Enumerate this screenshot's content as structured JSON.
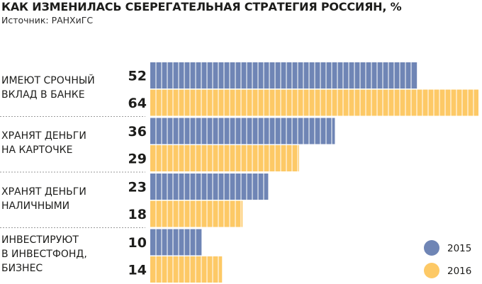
{
  "title": "КАК ИЗМЕНИЛАСЬ СБЕРЕГАТЕЛЬНАЯ СТРАТЕГИЯ РОССИЯН, %",
  "source": "Источник: РАНХиГС",
  "colors": {
    "2015": "#6f85b5",
    "2016": "#fdc966"
  },
  "chart_data": {
    "type": "bar",
    "orientation": "horizontal",
    "title": "КАК ИЗМЕНИЛАСЬ СБЕРЕГАТЕЛЬНАЯ СТРАТЕГИЯ РОССИЯН, %",
    "categories": [
      [
        "ИМЕЮТ СРОЧНЫЙ",
        "ВКЛАД В БАНКЕ"
      ],
      [
        "ХРАНЯТ ДЕНЬГИ",
        "НА КАРТОЧКЕ"
      ],
      [
        "ХРАНЯТ ДЕНЬГИ",
        "НАЛИЧНЫМИ"
      ],
      [
        "ИНВЕСТИРУЮТ",
        "В ИНВЕСТФОНД,",
        "БИЗНЕС"
      ]
    ],
    "series": [
      {
        "name": "2015",
        "values": [
          52,
          36,
          23,
          10
        ]
      },
      {
        "name": "2016",
        "values": [
          64,
          29,
          18,
          14
        ]
      }
    ],
    "xlim": [
      0,
      64
    ],
    "grid": false,
    "legend": "bottom-right"
  }
}
